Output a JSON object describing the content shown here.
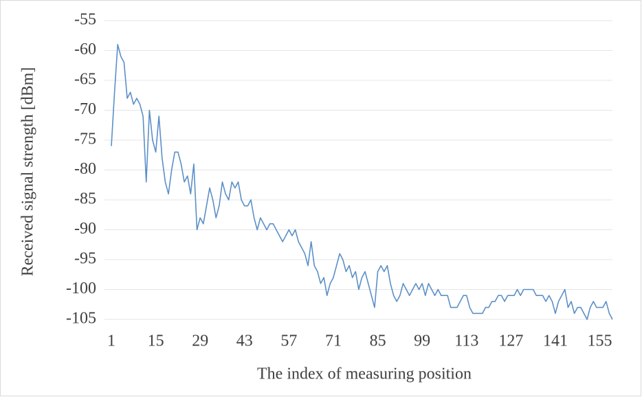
{
  "chart_data": {
    "type": "line",
    "xlabel": "The index of measuring position",
    "ylabel": "Received signal strength [dBm]",
    "x": [
      1,
      2,
      3,
      4,
      5,
      6,
      7,
      8,
      9,
      10,
      11,
      12,
      13,
      14,
      15,
      16,
      17,
      18,
      19,
      20,
      21,
      22,
      23,
      24,
      25,
      26,
      27,
      28,
      29,
      30,
      31,
      32,
      33,
      34,
      35,
      36,
      37,
      38,
      39,
      40,
      41,
      42,
      43,
      44,
      45,
      46,
      47,
      48,
      49,
      50,
      51,
      52,
      53,
      54,
      55,
      56,
      57,
      58,
      59,
      60,
      61,
      62,
      63,
      64,
      65,
      66,
      67,
      68,
      69,
      70,
      71,
      72,
      73,
      74,
      75,
      76,
      77,
      78,
      79,
      80,
      81,
      82,
      83,
      84,
      85,
      86,
      87,
      88,
      89,
      90,
      91,
      92,
      93,
      94,
      95,
      96,
      97,
      98,
      99,
      100,
      101,
      102,
      103,
      104,
      105,
      106,
      107,
      108,
      109,
      110,
      111,
      112,
      113,
      114,
      115,
      116,
      117,
      118,
      119,
      120,
      121,
      122,
      123,
      124,
      125,
      126,
      127,
      128,
      129,
      130,
      131,
      132,
      133,
      134,
      135,
      136,
      137,
      138,
      139,
      140,
      141,
      142,
      143,
      144,
      145,
      146,
      147,
      148,
      149,
      150,
      151,
      152,
      153,
      154,
      155,
      156,
      157,
      158,
      159
    ],
    "series": [
      {
        "color": "#5b8fc7",
        "values": [
          -76,
          -67,
          -59,
          -61,
          -62,
          -68,
          -67,
          -69,
          -68,
          -69,
          -71,
          -82,
          -70,
          -75,
          -77,
          -71,
          -78,
          -82,
          -84,
          -80,
          -77,
          -77,
          -79,
          -82,
          -81,
          -84,
          -79,
          -90,
          -88,
          -89,
          -86,
          -83,
          -85,
          -88,
          -86,
          -82,
          -84,
          -85,
          -82,
          -83,
          -82,
          -85,
          -86,
          -86,
          -85,
          -88,
          -90,
          -88,
          -89,
          -90,
          -89,
          -89,
          -90,
          -91,
          -92,
          -91,
          -90,
          -91,
          -90,
          -92,
          -93,
          -94,
          -96,
          -92,
          -96,
          -97,
          -99,
          -98,
          -101,
          -99,
          -98,
          -96,
          -94,
          -95,
          -97,
          -96,
          -98,
          -97,
          -100,
          -98,
          -97,
          -99,
          -101,
          -103,
          -97,
          -96,
          -97,
          -96,
          -99,
          -101,
          -102,
          -101,
          -99,
          -100,
          -101,
          -100,
          -99,
          -100,
          -99,
          -101,
          -99,
          -100,
          -101,
          -100,
          -101,
          -101,
          -101,
          -103,
          -103,
          -103,
          -102,
          -101,
          -101,
          -103,
          -104,
          -104,
          -104,
          -104,
          -103,
          -103,
          -102,
          -102,
          -101,
          -101,
          -102,
          -101,
          -101,
          -101,
          -100,
          -101,
          -100,
          -100,
          -100,
          -100,
          -101,
          -101,
          -101,
          -102,
          -101,
          -102,
          -104,
          -102,
          -101,
          -100,
          -103,
          -102,
          -104,
          -103,
          -103,
          -104,
          -105,
          -103,
          -102,
          -103,
          -103,
          -103,
          -102,
          -104,
          -105
        ]
      }
    ],
    "xlim": [
      1,
      159
    ],
    "xticks": [
      1,
      15,
      29,
      43,
      57,
      71,
      85,
      99,
      113,
      127,
      141,
      155
    ],
    "ylim": [
      -105,
      -55
    ],
    "yticks": [
      -55,
      -60,
      -65,
      -70,
      -75,
      -80,
      -85,
      -90,
      -95,
      -100,
      -105
    ],
    "grid": true
  }
}
